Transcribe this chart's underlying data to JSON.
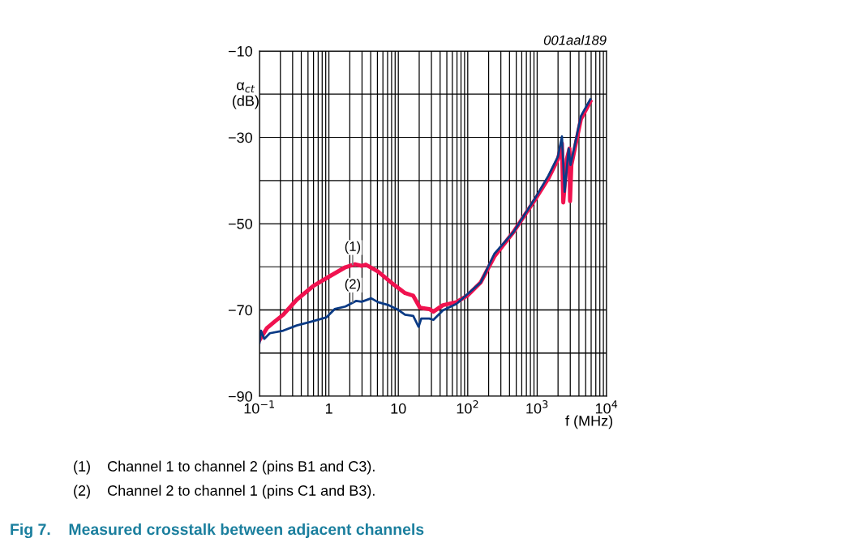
{
  "chart_data": {
    "type": "line",
    "title": "Fig 7.    Measured crosstalk between adjacent channels",
    "xlabel": "f (MHz)",
    "ylabel": "α$_{ct}$\n(dB)",
    "log": "x",
    "grid": true,
    "line_style": "solid",
    "marker": "none",
    "xlim": [
      0.1,
      10000
    ],
    "xticks": [
      {
        "value": 0.1,
        "label": "10$^{−1}$"
      },
      1,
      10,
      {
        "value": 100,
        "label": "10$^{2}$"
      },
      {
        "value": 1000,
        "label": "10$^{3}$"
      },
      {
        "value": 10000,
        "label": "10$^{4}$"
      }
    ],
    "ylim": [
      -90,
      -10
    ],
    "yticks": [
      {
        "value": -90,
        "label": "−90"
      },
      {
        "value": -80,
        "label": null
      },
      {
        "value": -70,
        "label": "−70"
      },
      {
        "value": -60,
        "label": null
      },
      {
        "value": -50,
        "label": "−50"
      },
      {
        "value": -40,
        "label": null
      },
      {
        "value": -30,
        "label": "−30"
      },
      {
        "value": -20,
        "label": null
      },
      {
        "value": -10,
        "label": "−10"
      }
    ],
    "series": [
      {
        "color": "#f0124f",
        "x": [
          0.1,
          0.128,
          0.168,
          0.22,
          0.345,
          0.59,
          1.0,
          1.73,
          2.38,
          2.97,
          3.4,
          5.1,
          8.7,
          12.5,
          16.4,
          20.5,
          28,
          32,
          43.9,
          68.7,
          98.4,
          154,
          242,
          453,
          927,
          1452,
          1988,
          2275,
          2378,
          2672,
          2924,
          2978,
          3113,
          4263,
          5837
        ],
        "values": [
          -77.0,
          -74.2,
          -72.6,
          -71.1,
          -67.6,
          -64.5,
          -62.3,
          -60.1,
          -59.4,
          -59.8,
          -59.5,
          -61.1,
          -64.2,
          -66.1,
          -66.7,
          -69.5,
          -69.8,
          -70.4,
          -68.9,
          -68.2,
          -66.7,
          -63.6,
          -57.6,
          -52.0,
          -44.5,
          -39.5,
          -35.1,
          -31.4,
          -45.1,
          -35.1,
          -32.6,
          -44.8,
          -36.4,
          -25.8,
          -21.7
        ]
      },
      {
        "color": "#0a3a85",
        "x": [
          0.1,
          0.105,
          0.117,
          0.141,
          0.22,
          0.345,
          0.59,
          0.925,
          1.21,
          1.73,
          2.48,
          2.97,
          4.07,
          5.1,
          7.3,
          9.55,
          12.5,
          16.4,
          19.6,
          21.4,
          28,
          32,
          43.9,
          68.7,
          98.4,
          154,
          242,
          453,
          927,
          1452,
          1988,
          2275,
          2490,
          2844,
          3030,
          4263,
          5837
        ],
        "values": [
          -77.6,
          -74.8,
          -76.7,
          -75.4,
          -74.8,
          -73.6,
          -72.6,
          -71.7,
          -69.8,
          -69.2,
          -67.9,
          -68.1,
          -67.3,
          -68.2,
          -68.9,
          -69.8,
          -71.1,
          -71.4,
          -73.9,
          -72.0,
          -72.0,
          -72.3,
          -70.1,
          -68.6,
          -66.4,
          -63.6,
          -57.0,
          -52.0,
          -44.2,
          -38.9,
          -34.5,
          -29.8,
          -42.6,
          -32.6,
          -36.4,
          -25.1,
          -21.2
        ]
      }
    ],
    "annotations": [
      {
        "text": "(1)",
        "x": 2.2,
        "y": -59.5
      },
      {
        "text": "(2)",
        "x": 2.2,
        "y": -68.2
      },
      "001aal189",
      "(1)    Channel 1 to channel 2 (pins B1 and C3).",
      "(2)    Channel 2 to channel 1 (pins C1 and B3)."
    ]
  }
}
